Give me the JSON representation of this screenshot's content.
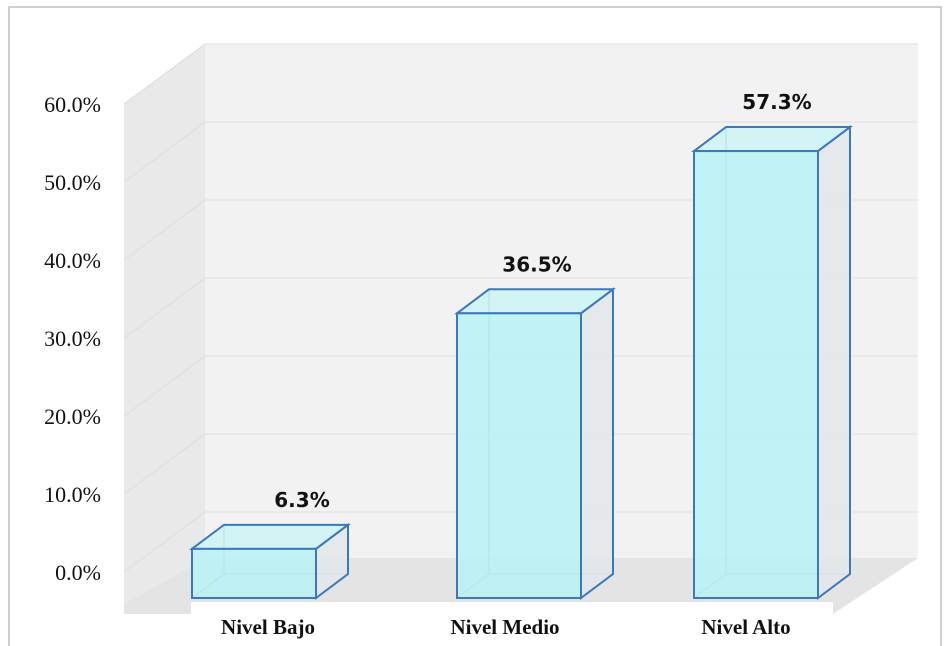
{
  "colors": {
    "bar_front": "#b8f2f4",
    "bar_top": "#c6f5f7",
    "bar_side": "#e3e8ea",
    "bar_stroke": "#3a78c0",
    "back_wall": "#f2f2f2",
    "side_wall": "#e9e9e9",
    "floor": "#e4e4e4",
    "gridline": "#e0e0e0",
    "frame": "#bfbfbf"
  },
  "chart_data": {
    "type": "bar",
    "style": "3d-column",
    "categories": [
      "Nivel Bajo",
      "Nivel Medio",
      "Nivel Alto"
    ],
    "values": [
      6.3,
      36.5,
      57.3
    ],
    "value_labels": [
      "6.3%",
      "36.5%",
      "57.3%"
    ],
    "yticks": [
      "0.0%",
      "10.0%",
      "20.0%",
      "30.0%",
      "40.0%",
      "50.0%",
      "60.0%"
    ],
    "ytick_values": [
      0,
      10,
      20,
      30,
      40,
      50,
      60
    ],
    "ylim": [
      0,
      60
    ],
    "grid": true,
    "legend": "none"
  }
}
